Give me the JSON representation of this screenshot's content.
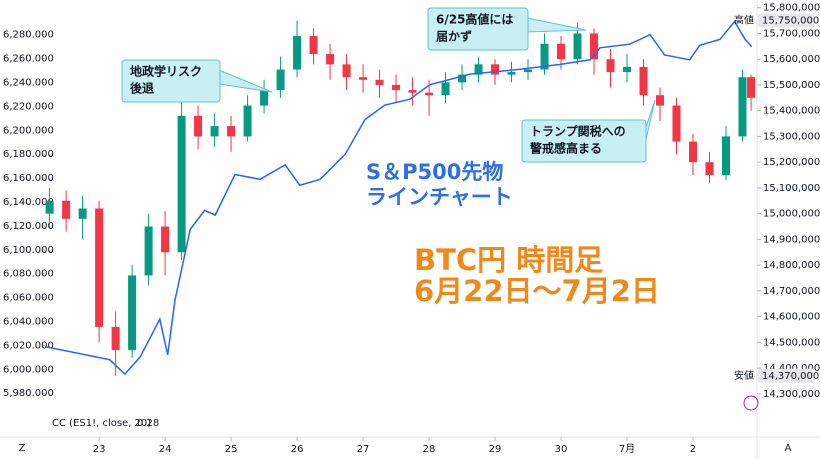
{
  "chart_data": {
    "type": "candlestick",
    "xlim": [
      22.18,
      32.97
    ],
    "xticks": [
      23,
      24,
      25,
      26,
      27,
      28,
      29,
      30,
      {
        "value": 31,
        "label": "7月"
      },
      {
        "value": 32,
        "label": "2"
      }
    ],
    "ylim": [
      14140000,
      15830000
    ],
    "yticks": [
      {
        "value": 14300000,
        "label": "14,300,000"
      },
      {
        "value": 14400000,
        "label": "14,400,000"
      },
      {
        "value": 14500000,
        "label": "14,500,000"
      },
      {
        "value": 14600000,
        "label": "14,600,000"
      },
      {
        "value": 14700000,
        "label": "14,700,000"
      },
      {
        "value": 14800000,
        "label": "14,800,000"
      },
      {
        "value": 14900000,
        "label": "14,900,000"
      },
      {
        "value": 15000000,
        "label": "15,000,000"
      },
      {
        "value": 15100000,
        "label": "15,100,000"
      },
      {
        "value": 15200000,
        "label": "15,200,000"
      },
      {
        "value": 15300000,
        "label": "15,300,000"
      },
      {
        "value": 15400000,
        "label": "15,400,000"
      },
      {
        "value": 15500000,
        "label": "15,500,000"
      },
      {
        "value": 15600000,
        "label": "15,600,000"
      },
      {
        "value": 15700000,
        "label": "15,700,000"
      },
      {
        "value": 15800000,
        "label": "15,800,000"
      }
    ],
    "up_color": "#089981",
    "down_color": "#f23645",
    "x": [
      22.25,
      22.5,
      22.75,
      23,
      23.25,
      23.5,
      23.75,
      24,
      24.25,
      24.5,
      24.75,
      25,
      25.25,
      25.5,
      25.75,
      26,
      26.25,
      26.5,
      26.75,
      27,
      27.25,
      27.5,
      27.75,
      28,
      28.25,
      28.5,
      28.75,
      29,
      29.25,
      29.5,
      29.75,
      30,
      30.25,
      30.5,
      30.75,
      31,
      31.25,
      31.5,
      31.75,
      32,
      32.25,
      32.5,
      32.75,
      32.88
    ],
    "open": [
      15000000,
      15050000,
      14980000,
      15020000,
      14560000,
      14470000,
      14760000,
      14950000,
      14850000,
      15380000,
      15300000,
      15340000,
      15300000,
      15420000,
      15480000,
      15560000,
      15690000,
      15620000,
      15580000,
      15530000,
      15520000,
      15500000,
      15480000,
      15470000,
      15460000,
      15510000,
      15540000,
      15580000,
      15540000,
      15550000,
      15560000,
      15660000,
      15600000,
      15700000,
      15600000,
      15550000,
      15570000,
      15460000,
      15420000,
      15280000,
      15200000,
      15150000,
      15300000,
      15530000
    ],
    "high": [
      15100000,
      15090000,
      15070000,
      15050000,
      14620000,
      14800000,
      15000000,
      15010000,
      15450000,
      15420000,
      15390000,
      15380000,
      15460000,
      15520000,
      15610000,
      15750000,
      15720000,
      15660000,
      15620000,
      15580000,
      15560000,
      15540000,
      15530000,
      15520000,
      15550000,
      15580000,
      15610000,
      15600000,
      15590000,
      15600000,
      15700000,
      15690000,
      15740000,
      15720000,
      15640000,
      15620000,
      15600000,
      15490000,
      15450000,
      15310000,
      15240000,
      15340000,
      15560000,
      15540000
    ],
    "low": [
      14950000,
      14930000,
      14900000,
      14500000,
      14370000,
      14440000,
      14720000,
      14760000,
      14820000,
      15250000,
      15260000,
      15240000,
      15280000,
      15390000,
      15450000,
      15530000,
      15580000,
      15520000,
      15480000,
      15470000,
      15450000,
      15430000,
      15420000,
      15380000,
      15430000,
      15480000,
      15510000,
      15500000,
      15510000,
      15520000,
      15540000,
      15560000,
      15580000,
      15540000,
      15490000,
      15510000,
      15420000,
      15360000,
      15230000,
      15150000,
      15120000,
      15130000,
      15280000,
      15400000
    ],
    "close": [
      15050000,
      14980000,
      15020000,
      14560000,
      14470000,
      14760000,
      14950000,
      14850000,
      15380000,
      15300000,
      15340000,
      15300000,
      15420000,
      15480000,
      15560000,
      15690000,
      15620000,
      15580000,
      15530000,
      15520000,
      15500000,
      15480000,
      15470000,
      15460000,
      15510000,
      15540000,
      15580000,
      15540000,
      15550000,
      15560000,
      15660000,
      15600000,
      15700000,
      15600000,
      15550000,
      15570000,
      15460000,
      15420000,
      15280000,
      15200000,
      15150000,
      15300000,
      15530000,
      15450000
    ],
    "overlay": {
      "type": "line",
      "axis": "y2",
      "color": "#2962ff",
      "x": [
        22.18,
        23.16,
        23.39,
        23.62,
        23.92,
        24.04,
        24.15,
        24.38,
        24.6,
        24.76,
        25.06,
        25.44,
        25.82,
        26.04,
        26.35,
        26.73,
        27.03,
        27.33,
        27.71,
        28.01,
        28.62,
        29.38,
        29.98,
        30.44,
        30.59,
        31.04,
        31.35,
        31.57,
        31.95,
        32.1,
        32.41,
        32.63,
        32.79,
        32.89
      ],
      "values": [
        6019,
        6008,
        5996,
        6010,
        6042,
        6012,
        6058,
        6117,
        6133,
        6129,
        6163,
        6159,
        6171,
        6154,
        6159,
        6180,
        6209,
        6221,
        6226,
        6238,
        6247,
        6251,
        6255,
        6259,
        6269,
        6272,
        6280,
        6263,
        6259,
        6271,
        6276,
        6291,
        6276,
        6270
      ]
    },
    "y2lim": [
      5945,
      6309
    ],
    "y2ticks": [
      {
        "value": 5980,
        "label": "5,980.000"
      },
      {
        "value": 6000,
        "label": "6,000.000"
      },
      {
        "value": 6020,
        "label": "6,020.000"
      },
      {
        "value": 6040,
        "label": "6,040.000"
      },
      {
        "value": 6060,
        "label": "6,060.000"
      },
      {
        "value": 6080,
        "label": "6,080.000"
      },
      {
        "value": 6100,
        "label": "6,100.000"
      },
      {
        "value": 6120,
        "label": "6,120.000"
      },
      {
        "value": 6140,
        "label": "6,140.000"
      },
      {
        "value": 6160,
        "label": "6,160.000"
      },
      {
        "value": 6180,
        "label": "6,180.000"
      },
      {
        "value": 6200,
        "label": "6,200.000"
      },
      {
        "value": 6220,
        "label": "6,220.000"
      },
      {
        "value": 6240,
        "label": "6,240.000"
      },
      {
        "value": 6260,
        "label": "6,260.000"
      },
      {
        "value": 6280,
        "label": "6,280.000"
      }
    ],
    "annotations": [
      {
        "lines": [
          "地政学リスク",
          "後退"
        ]
      },
      {
        "lines": [
          "6/25高値には",
          "届かず"
        ]
      },
      {
        "lines": [
          "トランプ関税への",
          "警戒感高まる"
        ]
      }
    ],
    "line_caption": {
      "lines": [
        "S＆P500先物",
        "ラインチャート"
      ],
      "color": "#2f6fe0"
    },
    "chart_caption": {
      "lines": [
        "BTC円 時間足",
        "6月22日〜7月2日"
      ],
      "color": "#f0891a"
    },
    "high_marker": {
      "text": "高値",
      "value": 15750000,
      "label": "15,750,000"
    },
    "low_marker": {
      "text": "安値",
      "value": 14370000,
      "label": "14,370,000"
    },
    "indicator": {
      "label": "CC (ES1!, close, 20)",
      "value": 0.28
    }
  },
  "ui": {
    "left_button": "Z",
    "right_button": "A"
  }
}
